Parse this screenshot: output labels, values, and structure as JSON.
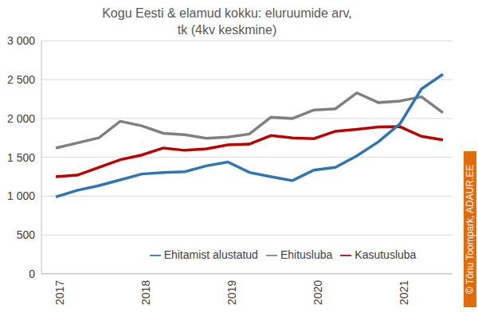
{
  "chart_data": {
    "type": "line",
    "title": "Kogu Eesti & elamud kokku: eluruumide arv, tk (4kv keskmine)",
    "categories": [
      "2017",
      null,
      null,
      null,
      "2018",
      null,
      null,
      null,
      "2019",
      null,
      null,
      null,
      "2020",
      null,
      null,
      null,
      "2021",
      null,
      null
    ],
    "series": [
      {
        "name": "Ehitusluba",
        "color": "#808080",
        "values": [
          1620,
          1685,
          1750,
          1965,
          1905,
          1810,
          1790,
          1745,
          1760,
          1800,
          2015,
          2000,
          2110,
          2125,
          2330,
          2205,
          2225,
          2280,
          2075
        ]
      },
      {
        "name": "Kasutusluba",
        "color": "#c00000",
        "values": [
          1250,
          1270,
          1370,
          1470,
          1530,
          1620,
          1590,
          1610,
          1660,
          1670,
          1780,
          1750,
          1740,
          1835,
          1860,
          1890,
          1895,
          1770,
          1725
        ]
      },
      {
        "name": "Ehitamist alustatud",
        "color": "#2e75b6",
        "values": [
          990,
          1075,
          1135,
          1210,
          1285,
          1305,
          1315,
          1390,
          1440,
          1305,
          1250,
          1200,
          1335,
          1370,
          1520,
          1700,
          1930,
          2380,
          2570
        ]
      }
    ],
    "ylim": [
      0,
      3000
    ],
    "yticks": [
      0,
      500,
      {
        "value": 1000,
        "label": "1 000"
      },
      {
        "value": 1500,
        "label": "1 500"
      },
      {
        "value": 2000,
        "label": "2 000"
      },
      {
        "value": 2500,
        "label": "2 500"
      },
      {
        "value": 3000,
        "label": "3 000"
      }
    ],
    "grid": true,
    "legend": "bottom",
    "annotations": [
      "© Tõnu Toompark, ADAUR.EE"
    ]
  }
}
